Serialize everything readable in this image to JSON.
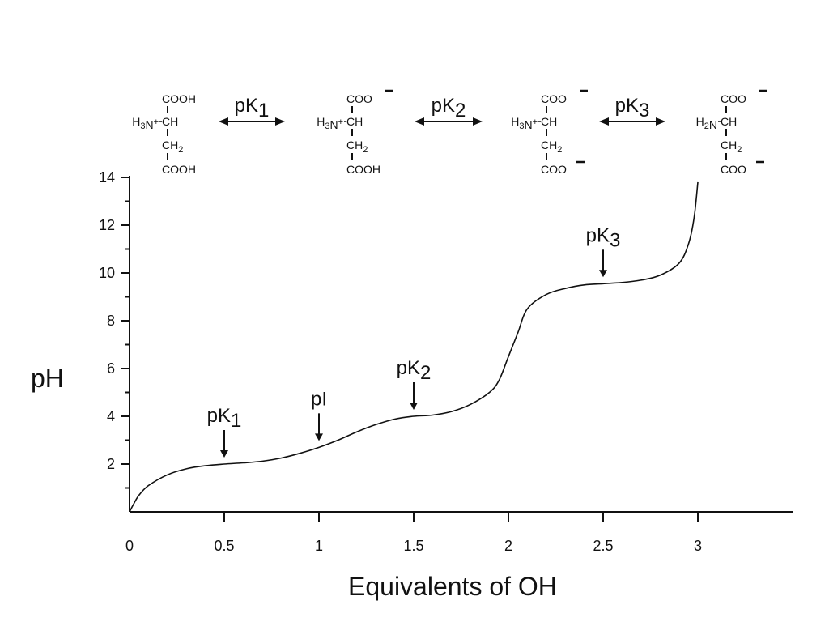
{
  "chart_data": {
    "type": "line",
    "title": "",
    "xlabel": "Equivalents of OH",
    "ylabel": "pH",
    "xlim": [
      0,
      3.5
    ],
    "ylim": [
      0,
      14
    ],
    "x_ticks": [
      "0",
      "0.5",
      "1",
      "1.5",
      "2",
      "2.5",
      "3"
    ],
    "y_ticks": [
      "2",
      "4",
      "6",
      "8",
      "10",
      "12",
      "14"
    ],
    "grid": false,
    "series": [
      {
        "x": [
          0.0,
          0.02,
          0.05,
          0.1,
          0.2,
          0.3,
          0.4,
          0.5,
          0.6,
          0.7,
          0.8,
          0.9,
          1.0,
          1.1,
          1.2,
          1.3,
          1.4,
          1.5,
          1.6,
          1.7,
          1.8,
          1.9,
          1.95,
          2.0,
          2.05,
          2.1,
          2.2,
          2.3,
          2.4,
          2.5,
          2.6,
          2.7,
          2.8,
          2.9,
          2.95,
          2.98,
          3.0
        ],
        "y": [
          0.0,
          0.3,
          0.7,
          1.1,
          1.55,
          1.8,
          1.93,
          2.0,
          2.05,
          2.12,
          2.25,
          2.45,
          2.7,
          3.0,
          3.35,
          3.65,
          3.88,
          4.0,
          4.05,
          4.2,
          4.5,
          5.0,
          5.5,
          6.5,
          7.5,
          8.5,
          9.1,
          9.35,
          9.5,
          9.55,
          9.6,
          9.7,
          9.9,
          10.4,
          11.2,
          12.3,
          13.8
        ]
      }
    ],
    "markers": [
      {
        "label": "pK",
        "sub": "1",
        "x": 0.5,
        "y": 2.0
      },
      {
        "label": "pI",
        "sub": "",
        "x": 1.0,
        "y": 2.7
      },
      {
        "label": "pK",
        "sub": "2",
        "x": 1.5,
        "y": 4.0
      },
      {
        "label": "pK",
        "sub": "3",
        "x": 2.5,
        "y": 9.55
      }
    ],
    "equilibria": [
      {
        "label": "pK",
        "sub": "1"
      },
      {
        "label": "pK",
        "sub": "2"
      },
      {
        "label": "pK",
        "sub": "3"
      }
    ],
    "structures": [
      {
        "top": "COOH",
        "top_charge": "",
        "left": "H3N+",
        "bottom": "COOH",
        "bottom_charge": ""
      },
      {
        "top": "COO",
        "top_charge": "-",
        "left": "H3N+",
        "bottom": "COOH",
        "bottom_charge": ""
      },
      {
        "top": "COO",
        "top_charge": "-",
        "left": "H3N+",
        "bottom": "COO",
        "bottom_charge": "-"
      },
      {
        "top": "COO",
        "top_charge": "-",
        "left": "H2N",
        "bottom": "COO",
        "bottom_charge": "-"
      }
    ]
  }
}
